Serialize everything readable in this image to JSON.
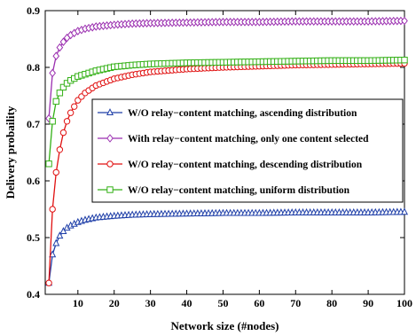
{
  "chart_data": {
    "type": "line",
    "title": "",
    "xlabel": "Network size (#nodes)",
    "ylabel": "Delivery probaility",
    "xlim": [
      1,
      100
    ],
    "ylim": [
      0.4,
      0.9
    ],
    "xticks": [
      10,
      20,
      30,
      40,
      50,
      60,
      70,
      80,
      90,
      100
    ],
    "yticks": [
      0.4,
      0.5,
      0.6,
      0.7,
      0.8,
      0.9
    ],
    "grid": false,
    "legend_position": "center-right",
    "series": [
      {
        "name": "W/O relay−content matching, ascending distribution",
        "color": "#1f3fa8",
        "marker": "triangle",
        "x": [
          2,
          3,
          4,
          5,
          6,
          7,
          8,
          10,
          12,
          15,
          20,
          25,
          30,
          40,
          50,
          60,
          70,
          80,
          90,
          100
        ],
        "y": [
          0.42,
          0.47,
          0.49,
          0.503,
          0.511,
          0.517,
          0.521,
          0.527,
          0.531,
          0.535,
          0.538,
          0.54,
          0.541,
          0.542,
          0.543,
          0.543,
          0.544,
          0.544,
          0.544,
          0.545
        ]
      },
      {
        "name": "With relay−content matching, only one content selected",
        "color": "#9b2fb0",
        "marker": "diamond",
        "x": [
          2,
          3,
          4,
          5,
          6,
          7,
          8,
          10,
          12,
          15,
          20,
          25,
          30,
          40,
          50,
          60,
          70,
          80,
          90,
          100
        ],
        "y": [
          0.71,
          0.79,
          0.82,
          0.835,
          0.845,
          0.852,
          0.857,
          0.864,
          0.868,
          0.872,
          0.875,
          0.877,
          0.878,
          0.879,
          0.88,
          0.88,
          0.881,
          0.881,
          0.881,
          0.882
        ]
      },
      {
        "name": "W/O relay−content matching, descending distribution",
        "color": "#e01010",
        "marker": "circle",
        "x": [
          2,
          3,
          4,
          5,
          6,
          7,
          8,
          10,
          12,
          15,
          20,
          25,
          30,
          40,
          50,
          60,
          70,
          80,
          90,
          100
        ],
        "y": [
          0.42,
          0.55,
          0.615,
          0.655,
          0.685,
          0.705,
          0.72,
          0.742,
          0.755,
          0.768,
          0.78,
          0.787,
          0.792,
          0.797,
          0.8,
          0.802,
          0.804,
          0.805,
          0.806,
          0.807
        ]
      },
      {
        "name": "W/O relay−content matching, uniform distribution",
        "color": "#33b016",
        "marker": "square",
        "x": [
          2,
          3,
          4,
          5,
          6,
          7,
          8,
          10,
          12,
          15,
          20,
          25,
          30,
          40,
          50,
          60,
          70,
          80,
          90,
          100
        ],
        "y": [
          0.63,
          0.705,
          0.74,
          0.755,
          0.765,
          0.772,
          0.777,
          0.784,
          0.788,
          0.794,
          0.801,
          0.804,
          0.806,
          0.808,
          0.809,
          0.81,
          0.811,
          0.812,
          0.812,
          0.813
        ]
      }
    ]
  }
}
